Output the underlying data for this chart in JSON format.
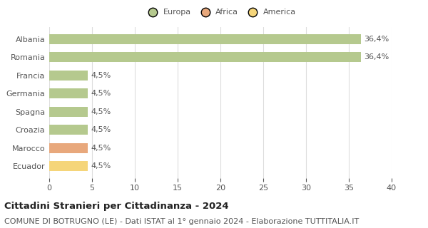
{
  "categories": [
    "Albania",
    "Romania",
    "Francia",
    "Germania",
    "Spagna",
    "Croazia",
    "Marocco",
    "Ecuador"
  ],
  "values": [
    36.4,
    36.4,
    4.5,
    4.5,
    4.5,
    4.5,
    4.5,
    4.5
  ],
  "labels": [
    "36,4%",
    "36,4%",
    "4,5%",
    "4,5%",
    "4,5%",
    "4,5%",
    "4,5%",
    "4,5%"
  ],
  "colors": [
    "#b5c98e",
    "#b5c98e",
    "#b5c98e",
    "#b5c98e",
    "#b5c98e",
    "#b5c98e",
    "#e8a87c",
    "#f5d57a"
  ],
  "legend_items": [
    {
      "label": "Europa",
      "color": "#b5c98e"
    },
    {
      "label": "Africa",
      "color": "#e8a87c"
    },
    {
      "label": "America",
      "color": "#f5d57a"
    }
  ],
  "xlim": [
    0,
    40
  ],
  "xticks": [
    0,
    5,
    10,
    15,
    20,
    25,
    30,
    35,
    40
  ],
  "title": "Cittadini Stranieri per Cittadinanza - 2024",
  "subtitle": "COMUNE DI BOTRUGNO (LE) - Dati ISTAT al 1° gennaio 2024 - Elaborazione TUTTITALIA.IT",
  "title_fontsize": 9.5,
  "subtitle_fontsize": 8,
  "label_fontsize": 8,
  "tick_fontsize": 8,
  "background_color": "#ffffff",
  "grid_color": "#dddddd",
  "bar_height": 0.55
}
